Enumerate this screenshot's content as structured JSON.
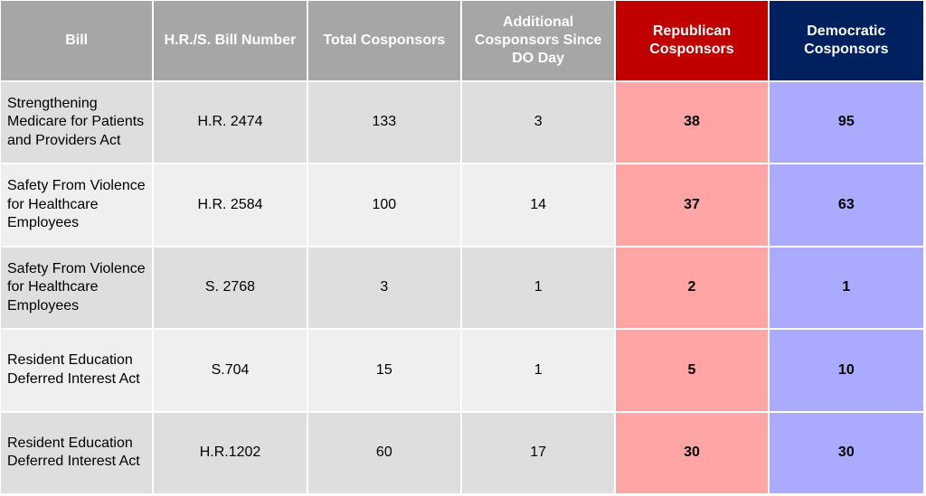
{
  "table": {
    "headers": {
      "bill": "Bill",
      "number": "H.R./S. Bill Number",
      "total": "Total Cosponsors",
      "additional": "Additional Cosponsors Since DO Day",
      "republican": "Republican Cosponsors",
      "democratic": "Democratic Cosponsors"
    },
    "rows": [
      {
        "bill": "Strengthening Medicare for Patients and Providers Act",
        "number": "H.R. 2474",
        "total": "133",
        "additional": "3",
        "republican": "38",
        "democratic": "95"
      },
      {
        "bill": "Safety From Violence for Healthcare Employees",
        "number": "H.R. 2584",
        "total": "100",
        "additional": "14",
        "republican": "37",
        "democratic": "63"
      },
      {
        "bill": "Safety From Violence for Healthcare Employees",
        "number": "S. 2768",
        "total": "3",
        "additional": "1",
        "republican": "2",
        "democratic": "1"
      },
      {
        "bill": "Resident Education Deferred Interest Act",
        "number": "S.704",
        "total": "15",
        "additional": "1",
        "republican": "5",
        "democratic": "10"
      },
      {
        "bill": "Resident Education Deferred Interest Act",
        "number": "H.R.1202",
        "total": "60",
        "additional": "17",
        "republican": "30",
        "democratic": "30"
      }
    ]
  },
  "colors": {
    "header_gray": "#a6a6a6",
    "header_republican": "#c00000",
    "header_democratic": "#002060",
    "cell_republican": "#ffa5a5",
    "cell_democratic": "#aaaaff",
    "row_odd": "#dedede",
    "row_even": "#efefef"
  }
}
